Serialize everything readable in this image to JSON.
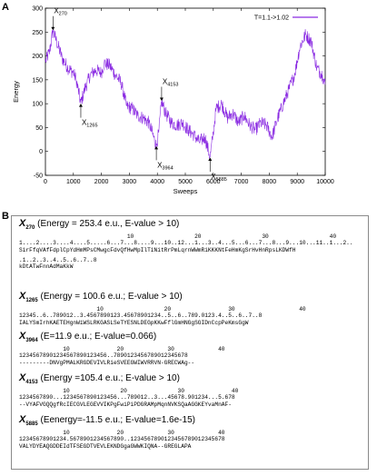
{
  "panel_a_label": "A",
  "panel_b_label": "B",
  "chart_data": {
    "type": "line",
    "title": "",
    "xlabel": "Sweeps",
    "ylabel": "Energy",
    "xlim": [
      0,
      10000
    ],
    "ylim": [
      -50,
      300
    ],
    "xticks": [
      0,
      1000,
      2000,
      3000,
      4000,
      5000,
      6000,
      7000,
      8000,
      9000,
      10000
    ],
    "yticks": [
      -50,
      0,
      50,
      100,
      150,
      200,
      250,
      300
    ],
    "grid": false,
    "legend_position": "top-right",
    "series": [
      {
        "name": "T=1.1->1.02",
        "color": "#8a2be2",
        "x": [
          0,
          150,
          270,
          400,
          600,
          800,
          1000,
          1100,
          1265,
          1400,
          1600,
          1800,
          2000,
          2100,
          2300,
          2500,
          2700,
          2900,
          3100,
          3300,
          3500,
          3700,
          3964,
          4050,
          4153,
          4300,
          4500,
          4700,
          4900,
          5100,
          5300,
          5500,
          5700,
          5885,
          6000,
          6100,
          6300,
          6500,
          6700,
          6900,
          7100,
          7300,
          7500,
          7700,
          7900,
          8100,
          8300,
          8500,
          8700,
          8900,
          9100,
          9300,
          9500,
          9700,
          9900,
          10000
        ],
        "values": [
          188,
          210,
          253,
          230,
          195,
          175,
          165,
          150,
          101,
          130,
          160,
          170,
          165,
          185,
          180,
          160,
          145,
          95,
          90,
          75,
          70,
          60,
          12,
          40,
          105,
          80,
          60,
          55,
          60,
          45,
          35,
          20,
          30,
          -12,
          40,
          90,
          100,
          70,
          80,
          60,
          75,
          55,
          45,
          60,
          55,
          30,
          70,
          100,
          130,
          160,
          220,
          245,
          230,
          175,
          160,
          140
        ]
      }
    ],
    "annotations": [
      {
        "base": "X",
        "sub": "270",
        "x": 270,
        "y": 253
      },
      {
        "base": "X",
        "sub": "1265",
        "x": 1265,
        "y": 101
      },
      {
        "base": "X",
        "sub": "3964",
        "x": 3964,
        "y": 12
      },
      {
        "base": "X",
        "sub": "4153",
        "x": 4153,
        "y": 105
      },
      {
        "base": "X",
        "sub": "5885",
        "x": 5885,
        "y": -12
      }
    ]
  },
  "entries": [
    {
      "sub": "270",
      "header": "(Energy = 253.4 e.u., E-value > 10)",
      "tens": "                                10                  20                  30                  40",
      "ruler": "1....2....3....4....5.....6...7...8....9...10..12...1...3..4...5...6...7...8...9...10...11..1...2..",
      "seq": "SirFfqVAfFdplCpYdHmMPsCMwgcFdvQfHwMpIlTiNitRrPmLqrnWWmRiKKKNtFeHmKgSrHvHnRpsLKDWfH",
      "ruler2": ".1..2..3..4..5..6..7..8",
      "seq2": "kDtATwFnnAdMaKkW"
    },
    {
      "sub": "1265",
      "header": "(Energy = 100.6 e.u.; E-value > 10)",
      "tens": "                       10                  20                 30                   40",
      "ruler": "12345..6..789012..3.4567890123.45678901234..5..6..789.0123.4..5..6..7..8",
      "seq": "IALYSmIrhKAETEHgnWiWSLRKGASLSeTYESNLDEGpKKwFflGmHNGgSGIDnCcpPeKmsGgW"
    },
    {
      "sub": "3964",
      "header": "(E=11.9 e.u.; E-value=0.066)",
      "tens": "             10              20             30             40",
      "ruler": "12345678901234567890123456..7890123456789012345678",
      "seq": "---------DNVgPMALKRGDEVIVLRieSVEEGWIWVRRVN-GRECWAg--"
    },
    {
      "sub": "4153",
      "header": "(Energy =105.4 e.u.; E-value > 10)",
      "tens": "             10               20               30              40",
      "ruler": "1234567890...1234567890123456...789012..3...45678.901234...5.678",
      "seq": "--VYAFVGQQgfRcIECGVLEGEVVIKPgFwiPiPDGRAMpMqnNVKSQaAGGKEYvaMnAF-"
    },
    {
      "sub": "5885",
      "header": "(Eenergy=-11.5 e.u.; E-value=1.6e-15)",
      "tens": "             10              20             30             40",
      "ruler": "12345678901234.5678901234567890..1234567890123456789012345678",
      "seq": "VALYDYEAQGDDEIdTFSEGDTVEVLEKNDGgaGWWKIQNA--GREGLAPA"
    }
  ]
}
